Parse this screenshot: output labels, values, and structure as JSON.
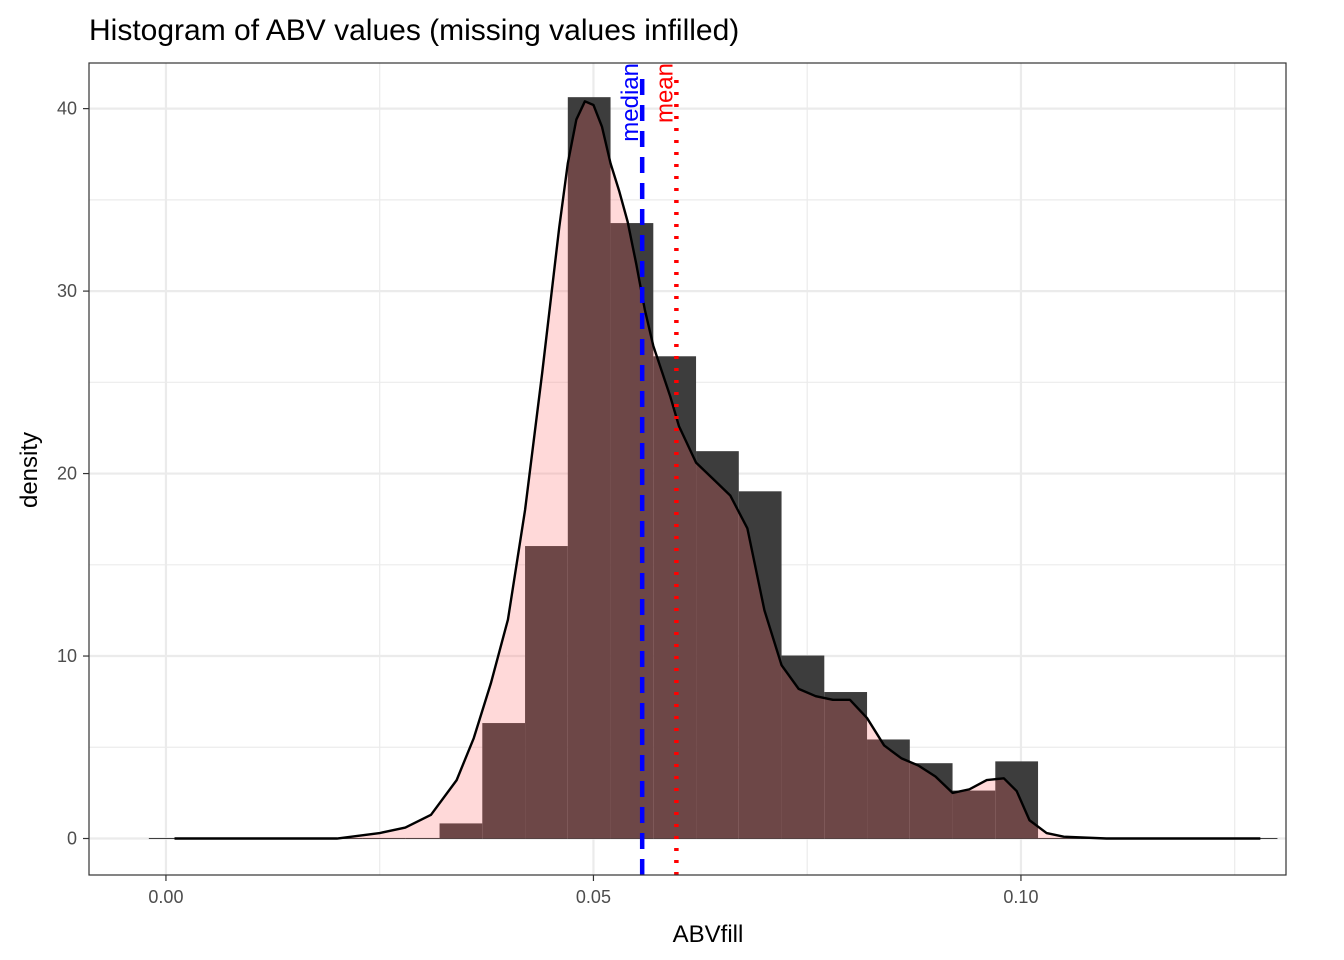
{
  "chart_data": {
    "type": "histogram",
    "title": "Histogram of ABV values (missing values infilled)",
    "xlabel": "ABVfill",
    "ylabel": "density",
    "xlim": [
      -0.009,
      0.131
    ],
    "ylim": [
      -2,
      42.5
    ],
    "x_ticks": [
      {
        "value": 0.0,
        "label": "0.00"
      },
      {
        "value": 0.05,
        "label": "0.05"
      },
      {
        "value": 0.1,
        "label": "0.10"
      }
    ],
    "x_minor_ticks": [
      0.025,
      0.075,
      0.125
    ],
    "y_ticks": [
      {
        "value": 0,
        "label": "0"
      },
      {
        "value": 10,
        "label": "10"
      },
      {
        "value": 20,
        "label": "20"
      },
      {
        "value": 30,
        "label": "30"
      },
      {
        "value": 40,
        "label": "40"
      }
    ],
    "y_minor_ticks": [
      5,
      15,
      25,
      35
    ],
    "grid": true,
    "bins": [
      {
        "x0": -0.002,
        "x1": 0.003,
        "density": 0
      },
      {
        "x0": 0.003,
        "x1": 0.008,
        "density": 0
      },
      {
        "x0": 0.008,
        "x1": 0.013,
        "density": 0
      },
      {
        "x0": 0.013,
        "x1": 0.018,
        "density": 0
      },
      {
        "x0": 0.018,
        "x1": 0.023,
        "density": 0
      },
      {
        "x0": 0.023,
        "x1": 0.028,
        "density": 0
      },
      {
        "x0": 0.028,
        "x1": 0.032,
        "density": 0
      },
      {
        "x0": 0.032,
        "x1": 0.037,
        "density": 0.8
      },
      {
        "x0": 0.037,
        "x1": 0.042,
        "density": 6.3
      },
      {
        "x0": 0.042,
        "x1": 0.047,
        "density": 16.0
      },
      {
        "x0": 0.047,
        "x1": 0.052,
        "density": 40.6
      },
      {
        "x0": 0.052,
        "x1": 0.057,
        "density": 33.7
      },
      {
        "x0": 0.057,
        "x1": 0.062,
        "density": 26.4
      },
      {
        "x0": 0.062,
        "x1": 0.067,
        "density": 21.2
      },
      {
        "x0": 0.067,
        "x1": 0.072,
        "density": 19.0
      },
      {
        "x0": 0.072,
        "x1": 0.077,
        "density": 10.0
      },
      {
        "x0": 0.077,
        "x1": 0.082,
        "density": 8.0
      },
      {
        "x0": 0.082,
        "x1": 0.087,
        "density": 5.4
      },
      {
        "x0": 0.087,
        "x1": 0.092,
        "density": 4.1
      },
      {
        "x0": 0.092,
        "x1": 0.097,
        "density": 2.6
      },
      {
        "x0": 0.097,
        "x1": 0.102,
        "density": 4.2
      },
      {
        "x0": 0.102,
        "x1": 0.107,
        "density": 0
      },
      {
        "x0": 0.107,
        "x1": 0.112,
        "density": 0
      },
      {
        "x0": 0.112,
        "x1": 0.117,
        "density": 0
      },
      {
        "x0": 0.117,
        "x1": 0.122,
        "density": 0
      },
      {
        "x0": 0.122,
        "x1": 0.126,
        "density": 0
      },
      {
        "x0": 0.126,
        "x1": 0.13,
        "density": 0
      }
    ],
    "density_curve": {
      "x": [
        0.001,
        0.01,
        0.02,
        0.025,
        0.028,
        0.031,
        0.034,
        0.036,
        0.038,
        0.04,
        0.042,
        0.044,
        0.045,
        0.046,
        0.047,
        0.048,
        0.049,
        0.05,
        0.051,
        0.052,
        0.053,
        0.054,
        0.055,
        0.056,
        0.057,
        0.058,
        0.059,
        0.06,
        0.062,
        0.064,
        0.066,
        0.068,
        0.07,
        0.072,
        0.074,
        0.076,
        0.078,
        0.08,
        0.082,
        0.084,
        0.086,
        0.088,
        0.09,
        0.092,
        0.094,
        0.096,
        0.098,
        0.0995,
        0.101,
        0.103,
        0.105,
        0.11,
        0.12,
        0.128
      ],
      "y": [
        0,
        0,
        0,
        0.3,
        0.6,
        1.3,
        3.2,
        5.5,
        8.5,
        12.0,
        18.0,
        25.5,
        29.5,
        33.5,
        37.0,
        39.4,
        40.4,
        40.2,
        39.0,
        37.0,
        35.5,
        33.8,
        31.5,
        29.0,
        27.0,
        25.6,
        24.2,
        22.6,
        20.6,
        19.7,
        18.8,
        17.0,
        12.5,
        9.5,
        8.2,
        7.8,
        7.6,
        7.6,
        6.6,
        5.1,
        4.4,
        4.0,
        3.4,
        2.5,
        2.7,
        3.2,
        3.3,
        2.6,
        1.0,
        0.3,
        0.1,
        0,
        0,
        0
      ]
    },
    "reference_lines": [
      {
        "name": "median",
        "value": 0.0557,
        "color": "#0000ff",
        "style": "dashed"
      },
      {
        "name": "mean",
        "value": 0.0597,
        "color": "#ff0000",
        "style": "dotted"
      }
    ],
    "colors": {
      "bar_fill": "#3d3d3d",
      "curve_fill": "#ff6666",
      "curve_line": "#000000",
      "grid": "#ebebeb",
      "panel_border": "#333333"
    }
  }
}
